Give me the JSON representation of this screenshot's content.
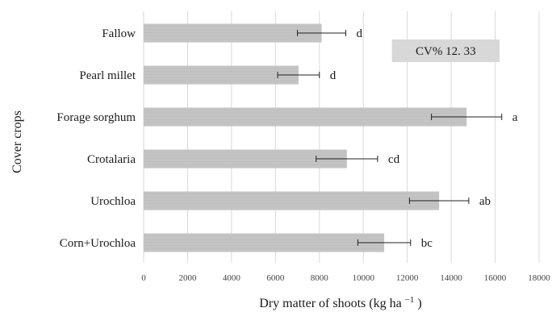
{
  "chart_data": {
    "type": "bar",
    "orientation": "horizontal",
    "categories": [
      "Fallow",
      "Pearl millet",
      "Forage sorghum",
      "Crotalaria",
      "Urochloa",
      "Corn+Urochloa"
    ],
    "values": [
      8100,
      7050,
      14700,
      9250,
      13450,
      10950
    ],
    "error": [
      1100,
      950,
      1600,
      1400,
      1350,
      1200
    ],
    "significance": [
      "d",
      "d",
      "a",
      "cd",
      "ab",
      "bc"
    ],
    "xlabel": "Dry matter of shoots (kg ha",
    "xlabel_sup": "−1",
    "xlabel_close": ")",
    "ylabel": "Cover crops",
    "xlim": [
      0,
      18000
    ],
    "xticks": [
      "0",
      "2000",
      "4000",
      "6000",
      "8000",
      "10000",
      "12000",
      "14000",
      "16000",
      "18000"
    ],
    "grid": "vertical",
    "annotation": "CV% 12. 33",
    "annotation_x_range": [
      11300,
      16200
    ],
    "colors": {
      "bar": "#c4c4c4",
      "bar_stripe": "#b6b6b6",
      "grid": "#d9d9d9",
      "annotation_bg": "#d8d8d8",
      "error": "#222222"
    }
  }
}
